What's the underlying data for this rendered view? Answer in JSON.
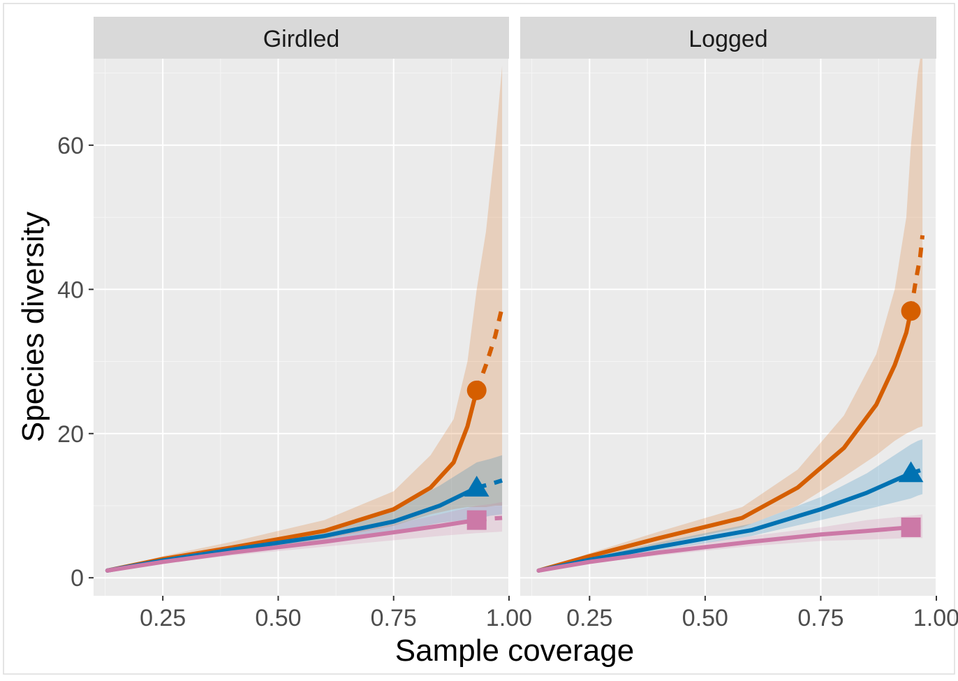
{
  "chart_data": {
    "type": "line",
    "xlabel": "Sample coverage",
    "ylabel": "Species diversity",
    "xlim": [
      0.1,
      1.0
    ],
    "ylim": [
      -2.5,
      72
    ],
    "x_ticks": [
      0.25,
      0.5,
      0.75,
      1.0
    ],
    "x_tick_labels": [
      "0.25",
      "0.50",
      "0.75",
      "1.00"
    ],
    "y_ticks": [
      0,
      20,
      40,
      60
    ],
    "y_tick_labels": [
      "0",
      "20",
      "40",
      "60"
    ],
    "grid": true,
    "legend": "none",
    "colors": {
      "q0": "#D55E00",
      "q1": "#0072B2",
      "q2": "#CC79A7",
      "panel_bg": "#EBEBEB",
      "strip_bg": "#D9D9D9"
    },
    "panels": [
      {
        "label": "Girdled",
        "series": [
          {
            "id": "q0",
            "marker": "circle",
            "observed": {
              "x": 0.93,
              "y": 26
            },
            "interpolated": {
              "x": [
                0.13,
                0.25,
                0.4,
                0.6,
                0.75,
                0.83,
                0.88,
                0.91,
                0.93
              ],
              "y": [
                1,
                2.6,
                4.2,
                6.5,
                9.5,
                12.5,
                16,
                21,
                26
              ]
            },
            "extrapolated": {
              "x": [
                0.93,
                0.95,
                0.97,
                0.985
              ],
              "y": [
                26,
                29.5,
                33.5,
                37.5
              ]
            },
            "band_lower": [
              1,
              2.2,
              3.6,
              5.4,
              7.2,
              8.8,
              9.5,
              9.8,
              9.8,
              9.8,
              10,
              10
            ],
            "band_upper": [
              1,
              3,
              5,
              8,
              12,
              17,
              22,
              30,
              40,
              48,
              60,
              71
            ],
            "band_x": [
              0.13,
              0.25,
              0.4,
              0.6,
              0.75,
              0.83,
              0.88,
              0.91,
              0.93,
              0.95,
              0.97,
              0.985
            ]
          },
          {
            "id": "q1",
            "marker": "triangle",
            "observed": {
              "x": 0.93,
              "y": 12.5
            },
            "interpolated": {
              "x": [
                0.13,
                0.25,
                0.4,
                0.6,
                0.75,
                0.85,
                0.93
              ],
              "y": [
                1,
                2.4,
                3.9,
                5.8,
                7.8,
                10,
                12.5
              ]
            },
            "extrapolated": {
              "x": [
                0.93,
                0.96,
                0.985
              ],
              "y": [
                12.5,
                13,
                13.5
              ]
            },
            "band_lower": [
              1,
              2.1,
              3.4,
              5,
              6.4,
              7.6,
              8.2,
              8.6,
              8.8
            ],
            "band_upper": [
              1,
              2.7,
              4.4,
              6.8,
              9.4,
              12.8,
              16,
              16.5,
              17
            ],
            "band_x": [
              0.13,
              0.25,
              0.4,
              0.6,
              0.75,
              0.85,
              0.93,
              0.96,
              0.985
            ]
          },
          {
            "id": "q2",
            "marker": "square",
            "observed": {
              "x": 0.93,
              "y": 8
            },
            "interpolated": {
              "x": [
                0.13,
                0.25,
                0.4,
                0.6,
                0.75,
                0.85,
                0.93
              ],
              "y": [
                1,
                2.2,
                3.5,
                5,
                6.3,
                7.2,
                8
              ]
            },
            "extrapolated": {
              "x": [
                0.93,
                0.96,
                0.985
              ],
              "y": [
                8,
                8.2,
                8.3
              ]
            },
            "band_lower": [
              1,
              2,
              3.1,
              4.3,
              5.2,
              5.8,
              6.2,
              6.3,
              6.4
            ],
            "band_upper": [
              1,
              2.5,
              4,
              5.8,
              7.4,
              8.8,
              10,
              10.2,
              10.5
            ],
            "band_x": [
              0.13,
              0.25,
              0.4,
              0.6,
              0.75,
              0.85,
              0.93,
              0.96,
              0.985
            ]
          }
        ]
      },
      {
        "label": "Logged",
        "series": [
          {
            "id": "q0",
            "marker": "circle",
            "observed": {
              "x": 0.945,
              "y": 37
            },
            "interpolated": {
              "x": [
                0.14,
                0.25,
                0.4,
                0.58,
                0.7,
                0.8,
                0.87,
                0.91,
                0.935,
                0.945
              ],
              "y": [
                1,
                3,
                5.5,
                8.3,
                12.5,
                18,
                24,
                29.5,
                34,
                37
              ]
            },
            "extrapolated": {
              "x": [
                0.945,
                0.955,
                0.965,
                0.97
              ],
              "y": [
                37,
                41,
                44.5,
                47.5
              ]
            },
            "band_lower": [
              1,
              2.5,
              4.6,
              7,
              10,
              14,
              17,
              19,
              20,
              20.3,
              20.8,
              21
            ],
            "band_upper": [
              1,
              3.4,
              6.4,
              9.8,
              15,
              22.5,
              31,
              40,
              50,
              60,
              70,
              74
            ],
            "band_x": [
              0.14,
              0.25,
              0.4,
              0.58,
              0.7,
              0.8,
              0.87,
              0.91,
              0.935,
              0.945,
              0.96,
              0.97
            ]
          },
          {
            "id": "q1",
            "marker": "triangle",
            "observed": {
              "x": 0.945,
              "y": 14.5
            },
            "interpolated": {
              "x": [
                0.14,
                0.25,
                0.4,
                0.6,
                0.75,
                0.85,
                0.945
              ],
              "y": [
                1,
                2.5,
                4.3,
                6.6,
                9.5,
                11.8,
                14.5
              ]
            },
            "extrapolated": {
              "x": [
                0.945,
                0.96,
                0.97
              ],
              "y": [
                14.5,
                14.8,
                15
              ]
            },
            "band_lower": [
              1,
              2.2,
              3.8,
              5.8,
              8,
              9.5,
              11,
              11.4,
              11.6
            ],
            "band_upper": [
              1,
              2.8,
              4.9,
              7.5,
              11.2,
              14.5,
              18.5,
              19,
              19.2
            ],
            "band_x": [
              0.14,
              0.25,
              0.4,
              0.6,
              0.75,
              0.85,
              0.945,
              0.96,
              0.97
            ]
          },
          {
            "id": "q2",
            "marker": "square",
            "observed": {
              "x": 0.945,
              "y": 7
            },
            "interpolated": {
              "x": [
                0.14,
                0.25,
                0.4,
                0.6,
                0.75,
                0.85,
                0.945
              ],
              "y": [
                1,
                2.2,
                3.5,
                5,
                6,
                6.5,
                7
              ]
            },
            "extrapolated": {
              "x": [
                0.945,
                0.96,
                0.97
              ],
              "y": [
                7,
                7,
                7
              ]
            },
            "band_lower": [
              1,
              2,
              3.1,
              4.4,
              5.1,
              5.3,
              5.5,
              5.5,
              5.5
            ],
            "band_upper": [
              1,
              2.5,
              3.9,
              5.8,
              7,
              8,
              8.6,
              8.7,
              8.8
            ],
            "band_x": [
              0.14,
              0.25,
              0.4,
              0.6,
              0.75,
              0.85,
              0.945,
              0.96,
              0.97
            ]
          }
        ]
      }
    ]
  }
}
